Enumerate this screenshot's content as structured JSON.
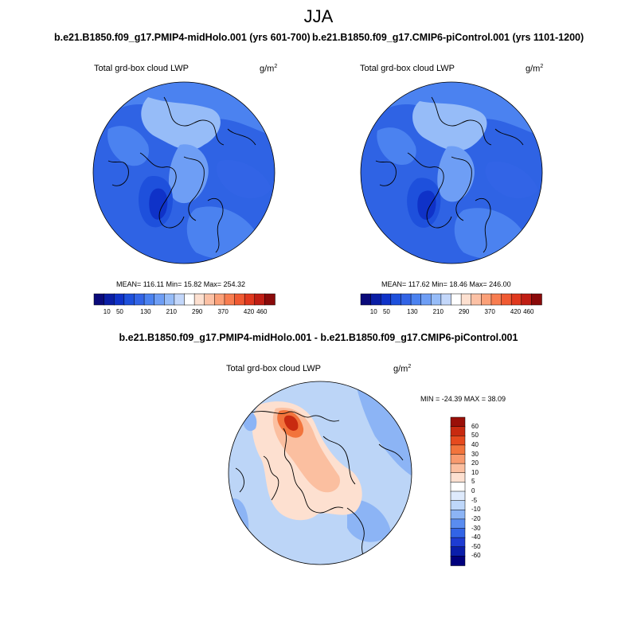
{
  "figure": {
    "title": "JJA"
  },
  "panels": {
    "left": {
      "run_title": "b.e21.B1850.f09_g17.PMIP4-midHolo.001 (yrs 601-700)",
      "variable": "Total grd-box cloud LWP",
      "units_base": "g/m",
      "units_exp": "2",
      "stats": "MEAN= 116.11  Min=  15.82  Max= 254.32"
    },
    "right": {
      "run_title": "b.e21.B1850.f09_g17.CMIP6-piControl.001 (yrs 1101-1200)",
      "variable": "Total grd-box cloud LWP",
      "units_base": "g/m",
      "units_exp": "2",
      "stats": "MEAN= 117.62  Min=  18.46  Max= 246.00"
    },
    "diff": {
      "run_title": "b.e21.B1850.f09_g17.PMIP4-midHolo.001 - b.e21.B1850.f09_g17.CMIP6-piControl.001",
      "variable": "Total grd-box cloud LWP",
      "units_base": "g/m",
      "units_exp": "2",
      "stats": "MIN = -24.39 MAX =  38.09"
    }
  },
  "colorbars": {
    "abs": {
      "colors": [
        "#0a0a7a",
        "#0a1ea5",
        "#0f32c8",
        "#1e50dc",
        "#3264e6",
        "#4b82f0",
        "#6e9ef5",
        "#96bcf8",
        "#c3d7fa",
        "#ffffff",
        "#fde0d0",
        "#fcc1a5",
        "#fba078",
        "#f87d50",
        "#f05a32",
        "#e0381e",
        "#c01e14",
        "#8a0a0a"
      ],
      "tick_labels": [
        "10",
        "50",
        "130",
        "210",
        "290",
        "370",
        "420",
        "460"
      ],
      "tick_positions": [
        1,
        2,
        4,
        6,
        8,
        10,
        12,
        13
      ],
      "color_stops": 14
    },
    "diff": {
      "colors": [
        "#00007d",
        "#0a1eaa",
        "#1e3cd2",
        "#3264e6",
        "#5a8cf0",
        "#8cb4f5",
        "#bed7fa",
        "#deeafc",
        "#ffffff",
        "#fde0d0",
        "#fbbfa0",
        "#f89a6e",
        "#f2743c",
        "#e64a1e",
        "#c82a10",
        "#9a0f08"
      ],
      "labels": [
        "60",
        "50",
        "40",
        "30",
        "20",
        "10",
        "5",
        "0",
        "-5",
        "-10",
        "-20",
        "-30",
        "-40",
        "-50",
        "-60"
      ]
    }
  },
  "map_colors": {
    "left_ocean": "#2f63e4",
    "right_ocean": "#2f63e4",
    "diff_base": "#bcd5f7"
  }
}
